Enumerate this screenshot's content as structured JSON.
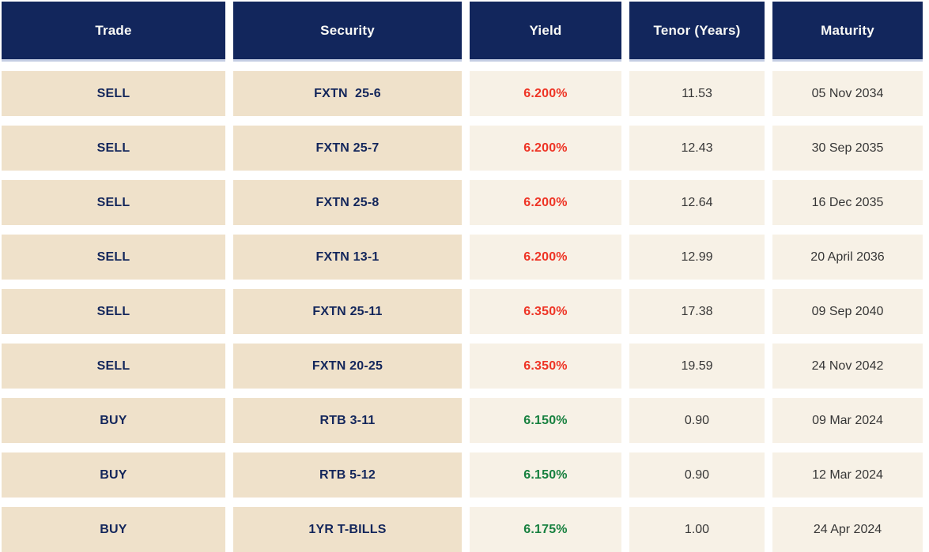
{
  "chart_data": {
    "type": "table",
    "title": "",
    "columns": [
      "Trade",
      "Security",
      "Yield",
      "Tenor (Years)",
      "Maturity"
    ],
    "rows": [
      {
        "trade": "SELL",
        "security": "FXTN  25-6",
        "yield": "6.200%",
        "tenor": "11.53",
        "maturity": "05 Nov 2034",
        "side": "sell"
      },
      {
        "trade": "SELL",
        "security": "FXTN 25-7",
        "yield": "6.200%",
        "tenor": "12.43",
        "maturity": "30 Sep 2035",
        "side": "sell"
      },
      {
        "trade": "SELL",
        "security": "FXTN 25-8",
        "yield": "6.200%",
        "tenor": "12.64",
        "maturity": "16 Dec 2035",
        "side": "sell"
      },
      {
        "trade": "SELL",
        "security": "FXTN 13-1",
        "yield": "6.200%",
        "tenor": "12.99",
        "maturity": "20 April 2036",
        "side": "sell"
      },
      {
        "trade": "SELL",
        "security": "FXTN 25-11",
        "yield": "6.350%",
        "tenor": "17.38",
        "maturity": "09 Sep 2040",
        "side": "sell"
      },
      {
        "trade": "SELL",
        "security": "FXTN 20-25",
        "yield": "6.350%",
        "tenor": "19.59",
        "maturity": "24 Nov 2042",
        "side": "sell"
      },
      {
        "trade": "BUY",
        "security": "RTB 3-11",
        "yield": "6.150%",
        "tenor": "0.90",
        "maturity": "09 Mar 2024",
        "side": "buy"
      },
      {
        "trade": "BUY",
        "security": "RTB 5-12",
        "yield": "6.150%",
        "tenor": "0.90",
        "maturity": "12 Mar 2024",
        "side": "buy"
      },
      {
        "trade": "BUY",
        "security": "1YR T-BILLS",
        "yield": "6.175%",
        "tenor": "1.00",
        "maturity": "24 Apr 2024",
        "side": "buy"
      }
    ],
    "layout": {
      "header_background": "#12265C",
      "trade_security_cell_background": "#EFE1CA",
      "value_cell_background": "#F7F1E6"
    },
    "colors": {
      "header_navy": "#12265C",
      "header_text": "#FAFAF6",
      "header_bottom_border": "#C5CEE4",
      "beige_cell": "#EFE1CA",
      "cream_cell": "#F7F1E6",
      "navy_text": "#13265B",
      "sell_yield_red": "#EE3425",
      "buy_yield_green": "#17803F",
      "dark_text": "#363636"
    }
  }
}
